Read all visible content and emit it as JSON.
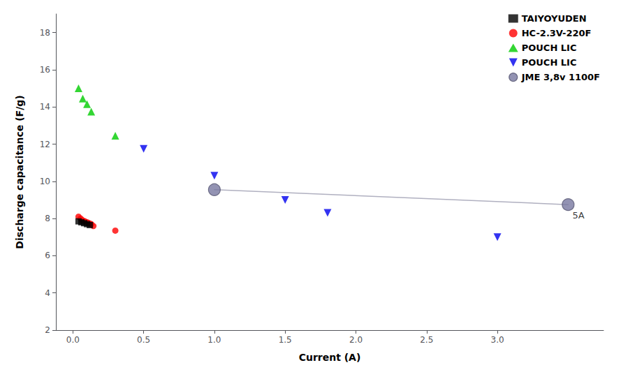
{
  "chart_data": {
    "type": "scatter",
    "xlabel": "Current (A)",
    "ylabel": "Discharge capacitance (F/g)",
    "xlim": [
      -0.12,
      3.75
    ],
    "ylim": [
      2,
      19
    ],
    "xticks": [
      {
        "value": 0,
        "label": "0.0"
      },
      0.5,
      {
        "value": 1,
        "label": "1.0"
      },
      1.5,
      {
        "value": 2,
        "label": "2.0"
      },
      2.5,
      {
        "value": 3,
        "label": "3.0"
      }
    ],
    "yticks": [
      2,
      4,
      6,
      8,
      10,
      12,
      14,
      16,
      18
    ],
    "grid": false,
    "legend": "upper right",
    "series": [
      {
        "type": "line",
        "color": "#b0b0c0",
        "x": [
          1.0,
          3.5
        ],
        "values": [
          9.55,
          8.75
        ]
      },
      {
        "name": "TAIYOYUDEN",
        "color": "#000000",
        "marker": "square",
        "x": [
          0.04,
          0.06,
          0.08,
          0.1,
          0.12
        ],
        "values": [
          7.85,
          7.8,
          7.75,
          7.7,
          7.65
        ]
      },
      {
        "name": "HC-2.3V-220F",
        "color": "#ff0000",
        "marker": "circle",
        "x": [
          0.04,
          0.055,
          0.07,
          0.085,
          0.1,
          0.115,
          0.13,
          0.145,
          0.3
        ],
        "values": [
          8.1,
          8.0,
          7.9,
          7.85,
          7.8,
          7.75,
          7.7,
          7.6,
          7.35
        ]
      },
      {
        "name": "POUCH LIC",
        "color": "#00cc00",
        "marker": "triangle-up",
        "x": [
          0.04,
          0.07,
          0.1,
          0.13,
          0.3
        ],
        "values": [
          15.0,
          14.45,
          14.15,
          13.75,
          12.45
        ]
      },
      {
        "name": "POUCH LIC",
        "color": "#0000ee",
        "marker": "triangle-down",
        "x": [
          0.5,
          1.0,
          1.5,
          1.8,
          3.0
        ],
        "values": [
          11.75,
          10.3,
          9.0,
          8.3,
          7.0
        ]
      },
      {
        "name": "JME 3,8v 1100F",
        "color": "#7878a0",
        "marker": "circle",
        "x": [
          1.0,
          3.5
        ],
        "values": [
          9.55,
          8.75
        ]
      }
    ],
    "annotations": [
      {
        "text": "5A",
        "x": 3.52,
        "y": 8.42
      }
    ]
  }
}
